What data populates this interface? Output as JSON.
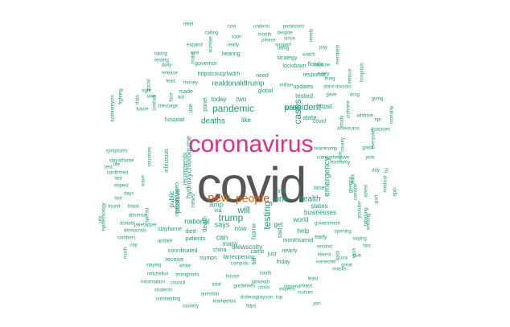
{
  "chart_data": {
    "type": "wordcloud",
    "title": "",
    "colors": {
      "tier1": "#555555",
      "tier2": "#e7298a",
      "tier3": "#d95f02",
      "tier4": "#1b9e77"
    },
    "words": [
      {
        "text": "covid",
        "tier": 1
      },
      {
        "text": "coronavirus",
        "tier": 2
      },
      {
        "text": "new",
        "tier": 3
      },
      {
        "text": "people",
        "tier": 3
      },
      {
        "text": "trump",
        "tier": 4
      },
      {
        "text": "pandemic",
        "tier": 4
      },
      {
        "text": "testing",
        "tier": 4
      },
      {
        "text": "will",
        "tier": 4
      },
      {
        "text": "one",
        "tier": 4
      },
      {
        "text": "cases",
        "tier": 4
      },
      {
        "text": "president",
        "tier": 4
      },
      {
        "text": "deaths",
        "tier": 4
      },
      {
        "text": "health",
        "tier": 4
      },
      {
        "text": "can",
        "tier": 4
      },
      {
        "text": "says",
        "tier": 4
      },
      {
        "text": "positive",
        "tier": 4
      },
      {
        "text": "hydroxychloroquine",
        "tier": 4
      },
      {
        "text": "realdonaldtrump",
        "tier": 4
      },
      {
        "text": "help",
        "tier": 4
      },
      {
        "text": "national",
        "tier": 4
      },
      {
        "text": "emergency",
        "tier": 4
      },
      {
        "text": "home",
        "tier": 4
      },
      {
        "text": "businesses",
        "tier": 4
      },
      {
        "text": "world",
        "tier": 4
      },
      {
        "text": "get",
        "tier": 4
      },
      {
        "text": "states",
        "tier": 4
      },
      {
        "text": "state",
        "tier": 4
      },
      {
        "text": "today",
        "tier": 4
      },
      {
        "text": "two",
        "tier": 4
      },
      {
        "text": "like",
        "tier": 4
      },
      {
        "text": "now",
        "tier": 4
      },
      {
        "text": "many",
        "tier": 4
      },
      {
        "text": "death",
        "tier": 4
      },
      {
        "text": "news",
        "tier": 4
      },
      {
        "text": "amp",
        "tier": 4
      },
      {
        "text": "public",
        "tier": 4
      },
      {
        "text": "tested",
        "tier": 4
      },
      {
        "text": "httpst",
        "tier": 4
      },
      {
        "text": "updates",
        "tier": 4
      },
      {
        "text": "response",
        "tier": 4
      },
      {
        "text": "panel",
        "tier": 4
      },
      {
        "text": "use",
        "tier": 4
      },
      {
        "text": "time",
        "tier": 4
      },
      {
        "text": "first",
        "tier": 4
      },
      {
        "text": "months",
        "tier": 4
      },
      {
        "text": "said",
        "tier": 4
      },
      {
        "text": "patients",
        "tier": 4
      },
      {
        "text": "via",
        "tier": 4
      },
      {
        "text": "drewscotty",
        "tier": 4
      },
      {
        "text": "coordinated",
        "tier": 4
      },
      {
        "text": "china",
        "tier": 4
      },
      {
        "text": "stayhome",
        "tier": 4
      },
      {
        "text": "died",
        "tier": 4
      },
      {
        "text": "recommends",
        "tier": 4
      },
      {
        "text": "realcandaceo",
        "tier": 4
      },
      {
        "text": "covid",
        "tier": 4
      },
      {
        "text": "global",
        "tier": 4
      },
      {
        "text": "work",
        "tier": 4
      },
      {
        "text": "need",
        "tier": 4
      },
      {
        "text": "made",
        "tier": 4
      },
      {
        "text": "hearing",
        "tier": 4
      },
      {
        "text": "lockdown",
        "tier": 4
      },
      {
        "text": "strategy",
        "tier": 4
      },
      {
        "text": "florida",
        "tier": 4
      },
      {
        "text": "governor",
        "tier": 4
      },
      {
        "text": "httpstcouqzlwdrh",
        "tier": 4
      },
      {
        "text": "azithromycin",
        "tier": 4
      },
      {
        "text": "fighting",
        "tier": 4
      },
      {
        "text": "epidemiology",
        "tier": 4
      },
      {
        "text": "infectious",
        "tier": 4
      },
      {
        "text": "stayathome",
        "tier": 4
      },
      {
        "text": "symptoms",
        "tier": 4
      },
      {
        "text": "confirmed",
        "tier": 4
      },
      {
        "text": "hospital",
        "tier": 4
      },
      {
        "text": "countries",
        "tier": 4
      },
      {
        "text": "wave",
        "tier": 4
      },
      {
        "text": "spread",
        "tier": 4
      },
      {
        "text": "absence",
        "tier": 4
      },
      {
        "text": "jaketapper",
        "tier": 4
      },
      {
        "text": "update",
        "tier": 4
      },
      {
        "text": "receive",
        "tier": 4
      },
      {
        "text": "trumps",
        "tier": 4
      },
      {
        "text": "farreopening",
        "tier": 4
      },
      {
        "text": "came",
        "tier": 4
      },
      {
        "text": "bill",
        "tier": 4
      },
      {
        "text": "just",
        "tier": 4
      },
      {
        "text": "friday",
        "tier": 4
      },
      {
        "text": "nearly",
        "tier": 4
      },
      {
        "text": "amid",
        "tier": 4
      },
      {
        "text": "early",
        "tier": 4
      },
      {
        "text": "opening",
        "tier": 4
      },
      {
        "text": "government",
        "tier": 4
      },
      {
        "text": "second",
        "tier": 4
      },
      {
        "text": "lowest",
        "tier": 4
      },
      {
        "text": "least",
        "tier": 4
      },
      {
        "text": "shows",
        "tier": 4
      },
      {
        "text": "nurses",
        "tier": 4
      },
      {
        "text": "citizens",
        "tier": 4
      },
      {
        "text": "experts",
        "tier": 4
      },
      {
        "text": "top",
        "tier": 4
      },
      {
        "text": "join",
        "tier": 4
      },
      {
        "text": "https",
        "tier": 4
      },
      {
        "text": "drdenagrayson",
        "tier": 4
      },
      {
        "text": "guidelines",
        "tier": 4
      },
      {
        "text": "jamieodr",
        "tier": 4
      },
      {
        "text": "south",
        "tier": 4
      },
      {
        "text": "crisis",
        "tier": 4
      },
      {
        "text": "house",
        "tier": 4
      },
      {
        "text": "total",
        "tier": 4
      },
      {
        "text": "teampelosi",
        "tier": 4
      },
      {
        "text": "question",
        "tier": 4
      },
      {
        "text": "country",
        "tier": 4
      },
      {
        "text": "outstanding",
        "tier": 4
      },
      {
        "text": "students",
        "tier": 4
      },
      {
        "text": "information",
        "tier": 4
      },
      {
        "text": "council",
        "tier": 4
      },
      {
        "text": "immigrants",
        "tier": 4
      },
      {
        "text": "mitchellvii",
        "tier": 4
      },
      {
        "text": "staying",
        "tier": 4
      },
      {
        "text": "white",
        "tier": 4
      },
      {
        "text": "compuls",
        "tier": 4
      },
      {
        "text": "much",
        "tier": 4
      },
      {
        "text": "say",
        "tier": 4
      },
      {
        "text": "democrats",
        "tier": 4
      },
      {
        "text": "numbers",
        "tier": 4
      },
      {
        "text": "donald",
        "tier": 4
      },
      {
        "text": "black",
        "tier": 4
      },
      {
        "text": "days",
        "tier": 4
      },
      {
        "text": "expect",
        "tier": 4
      },
      {
        "text": "lost",
        "tier": 4
      },
      {
        "text": "life",
        "tier": 4
      },
      {
        "text": "test",
        "tier": 4
      },
      {
        "text": "last",
        "tier": 4
      },
      {
        "text": "found",
        "tier": 4
      },
      {
        "text": "ufa",
        "tier": 4
      },
      {
        "text": "relief",
        "tier": 4
      },
      {
        "text": "covi",
        "tier": 4
      },
      {
        "text": "undersi",
        "tier": 4
      },
      {
        "text": "protestors",
        "tier": 4
      },
      {
        "text": "calling",
        "tier": 4
      },
      {
        "text": "despite",
        "tier": 4
      },
      {
        "text": "month",
        "tier": 4
      },
      {
        "text": "needs",
        "tier": 4
      },
      {
        "text": "soon",
        "tier": 4
      },
      {
        "text": "please",
        "tier": 4
      },
      {
        "text": "since",
        "tier": 4
      },
      {
        "text": "number",
        "tier": 4
      },
      {
        "text": "expand",
        "tier": 4
      },
      {
        "text": "really",
        "tier": 4
      },
      {
        "text": "using",
        "tier": 4
      },
      {
        "text": "pay",
        "tier": 4
      },
      {
        "text": "support",
        "tier": 4
      },
      {
        "text": "rate",
        "tier": 4
      },
      {
        "text": "watch",
        "tier": 4
      },
      {
        "text": "members",
        "tier": 4
      },
      {
        "text": "taking",
        "tier": 4
      },
      {
        "text": "testing",
        "tier": 4
      },
      {
        "text": "make",
        "tier": 4
      },
      {
        "text": "daily",
        "tier": 4
      },
      {
        "text": "vaccine",
        "tier": 4
      },
      {
        "text": "release",
        "tier": 4
      },
      {
        "text": "every",
        "tier": 4
      },
      {
        "text": "thing",
        "tier": 4
      },
      {
        "text": "done",
        "tier": 4
      },
      {
        "text": "hospitals",
        "tier": 4
      },
      {
        "text": "lead",
        "tier": 4
      },
      {
        "text": "serious",
        "tier": 4
      },
      {
        "text": "money",
        "tier": 4
      },
      {
        "text": "million",
        "tier": 4
      },
      {
        "text": "doctors",
        "tier": 4
      },
      {
        "text": "gave",
        "tier": 4
      },
      {
        "text": "drug",
        "tier": 4
      },
      {
        "text": "aid",
        "tier": 4
      },
      {
        "text": "whitmer",
        "tier": 4
      },
      {
        "text": "mortality",
        "tier": 4
      },
      {
        "text": "right",
        "tier": 4
      },
      {
        "text": "take",
        "tier": 4
      },
      {
        "text": "contact",
        "tier": 4
      },
      {
        "text": "future",
        "tier": 4
      },
      {
        "text": "face",
        "tier": 4
      },
      {
        "text": "message",
        "tier": 4
      },
      {
        "text": "social",
        "tier": 4
      },
      {
        "text": "data",
        "tier": 4
      },
      {
        "text": "going",
        "tier": 4
      },
      {
        "text": "npr",
        "tier": 4
      },
      {
        "text": "diseases",
        "tier": 4
      },
      {
        "text": "americans",
        "tier": 4
      },
      {
        "text": "study",
        "tier": 4
      },
      {
        "text": "everyone",
        "tier": 4
      },
      {
        "text": "good",
        "tier": 4
      },
      {
        "text": "york",
        "tier": 4
      },
      {
        "text": "day",
        "tier": 4
      },
      {
        "text": "april",
        "tier": 4
      },
      {
        "text": "medical",
        "tier": 4
      },
      {
        "text": "flu",
        "tier": 4
      },
      {
        "text": "part",
        "tier": 4
      },
      {
        "text": "think",
        "tier": 4
      },
      {
        "text": "caroline",
        "tier": 4
      },
      {
        "text": "asked",
        "tier": 4
      },
      {
        "text": "youtube",
        "tier": 4
      },
      {
        "text": "working",
        "tier": 4
      },
      {
        "text": "breaking",
        "tier": 4
      },
      {
        "text": "county",
        "tier": 4
      },
      {
        "text": "case",
        "tier": 4
      },
      {
        "text": "cuttrone",
        "tier": 4
      },
      {
        "text": "teamtrump",
        "tier": 4
      },
      {
        "text": "comprehensive",
        "tier": 4
      },
      {
        "text": "economy",
        "tier": 4
      },
      {
        "text": "georgia",
        "tier": 4
      },
      {
        "text": "saying",
        "tier": 4
      },
      {
        "text": "due",
        "tier": 4
      },
      {
        "text": "virus",
        "tier": 4
      },
      {
        "text": "fact",
        "tier": 4
      },
      {
        "text": "back",
        "tier": 4
      },
      {
        "text": "usa",
        "tier": 4
      },
      {
        "text": "great",
        "tier": 4
      },
      {
        "text": "masks",
        "tier": 4
      },
      {
        "text": "someone",
        "tier": 4
      },
      {
        "text": "workers",
        "tier": 4
      },
      {
        "text": "want",
        "tier": 4
      },
      {
        "text": "lab",
        "tier": 4
      },
      {
        "text": "fight",
        "tier": 4
      },
      {
        "text": "latest",
        "tier": 4
      },
      {
        "text": "cov",
        "tier": 4
      }
    ]
  }
}
